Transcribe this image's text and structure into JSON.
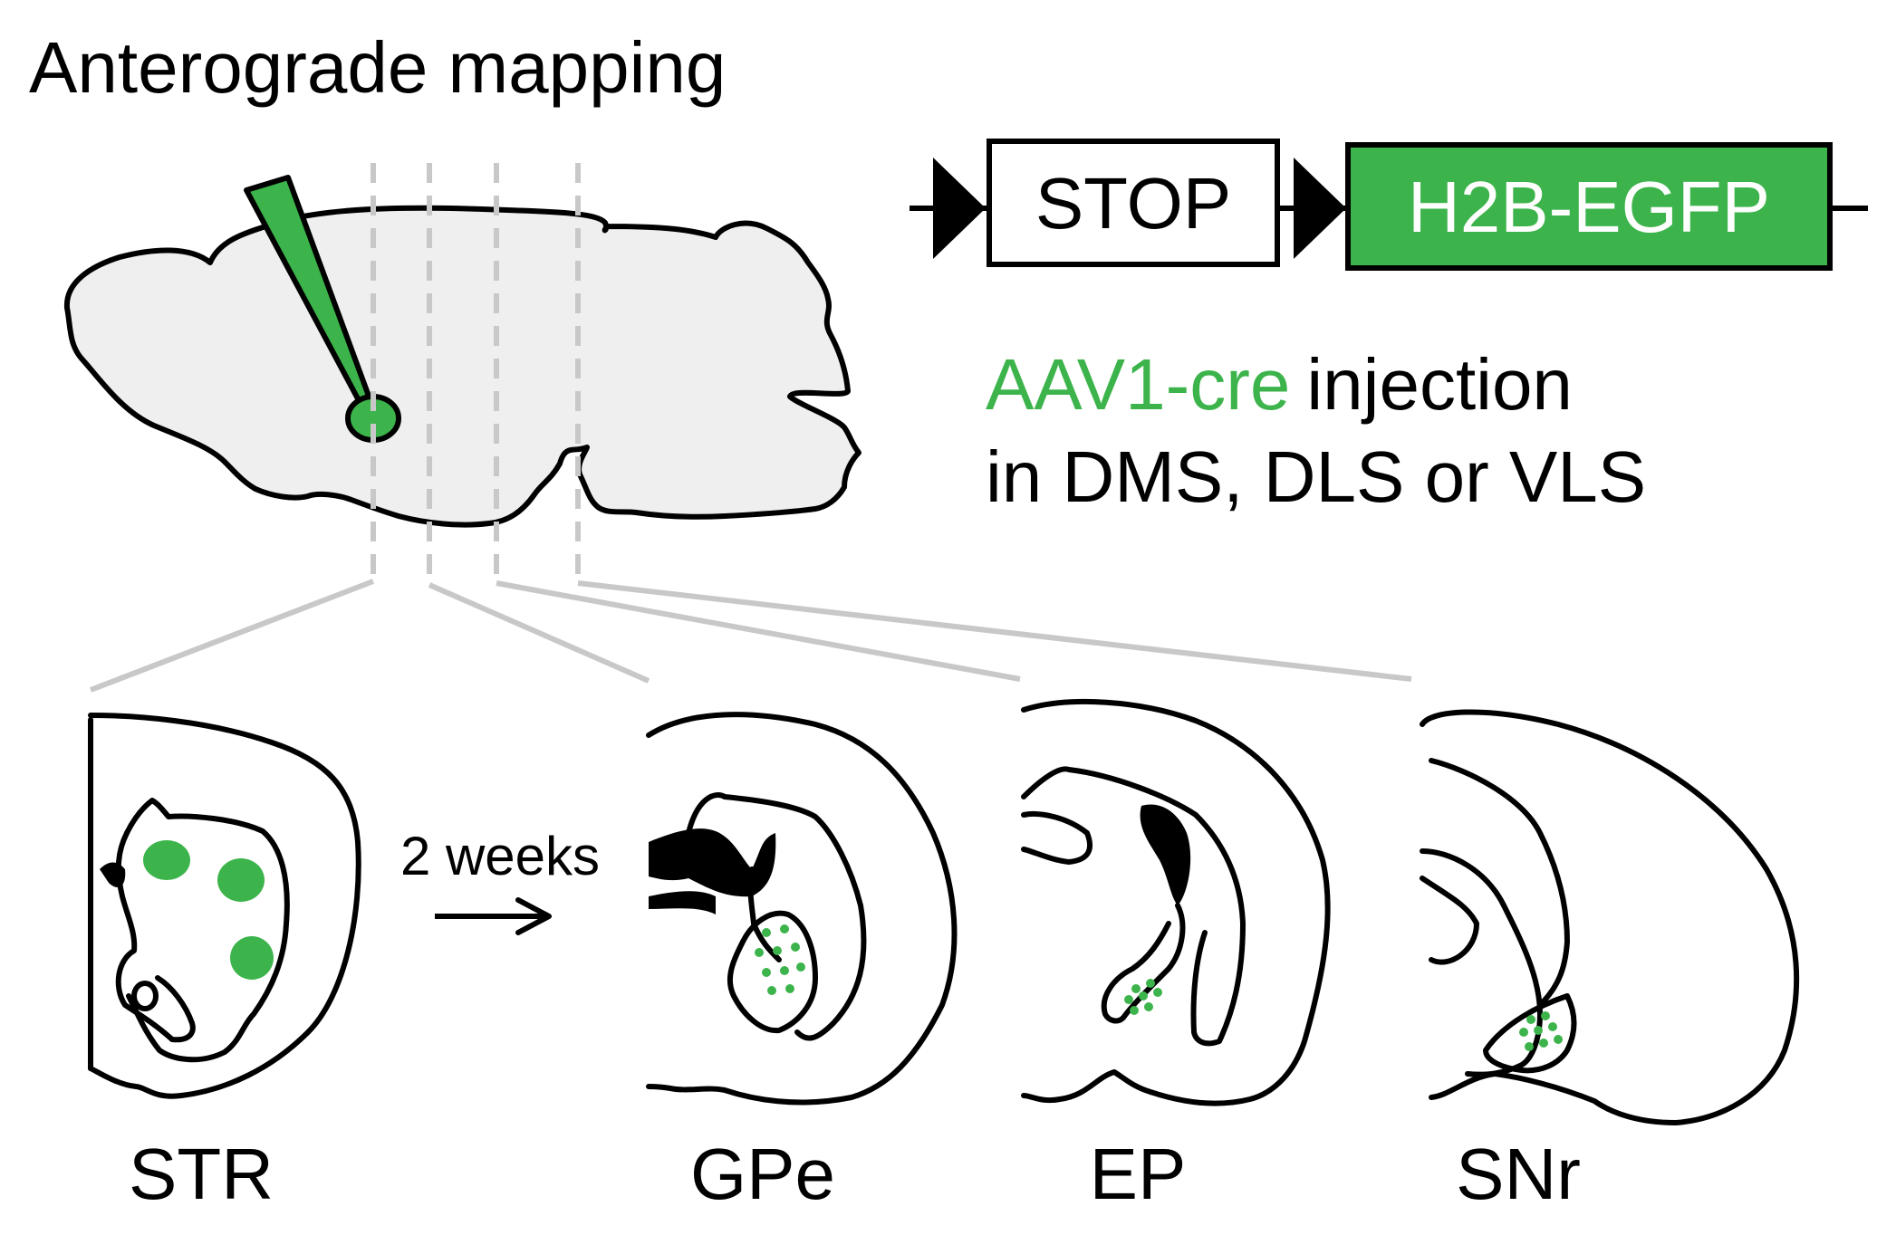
{
  "title": "Anterograde mapping",
  "construct": {
    "stop_label": "STOP",
    "reporter_label": "H2B-EGFP"
  },
  "injection": {
    "virus": "AAV1-cre",
    "line1_rest": "injection",
    "line2": "in DMS, DLS or VLS"
  },
  "time_label": "2 weeks",
  "sections": [
    {
      "label": "STR"
    },
    {
      "label": "GPe"
    },
    {
      "label": "EP"
    },
    {
      "label": "SNr"
    }
  ],
  "colors": {
    "accent_green": "#3cb44b",
    "brain_fill": "#efefef",
    "guide_gray": "#c8c8c8"
  }
}
